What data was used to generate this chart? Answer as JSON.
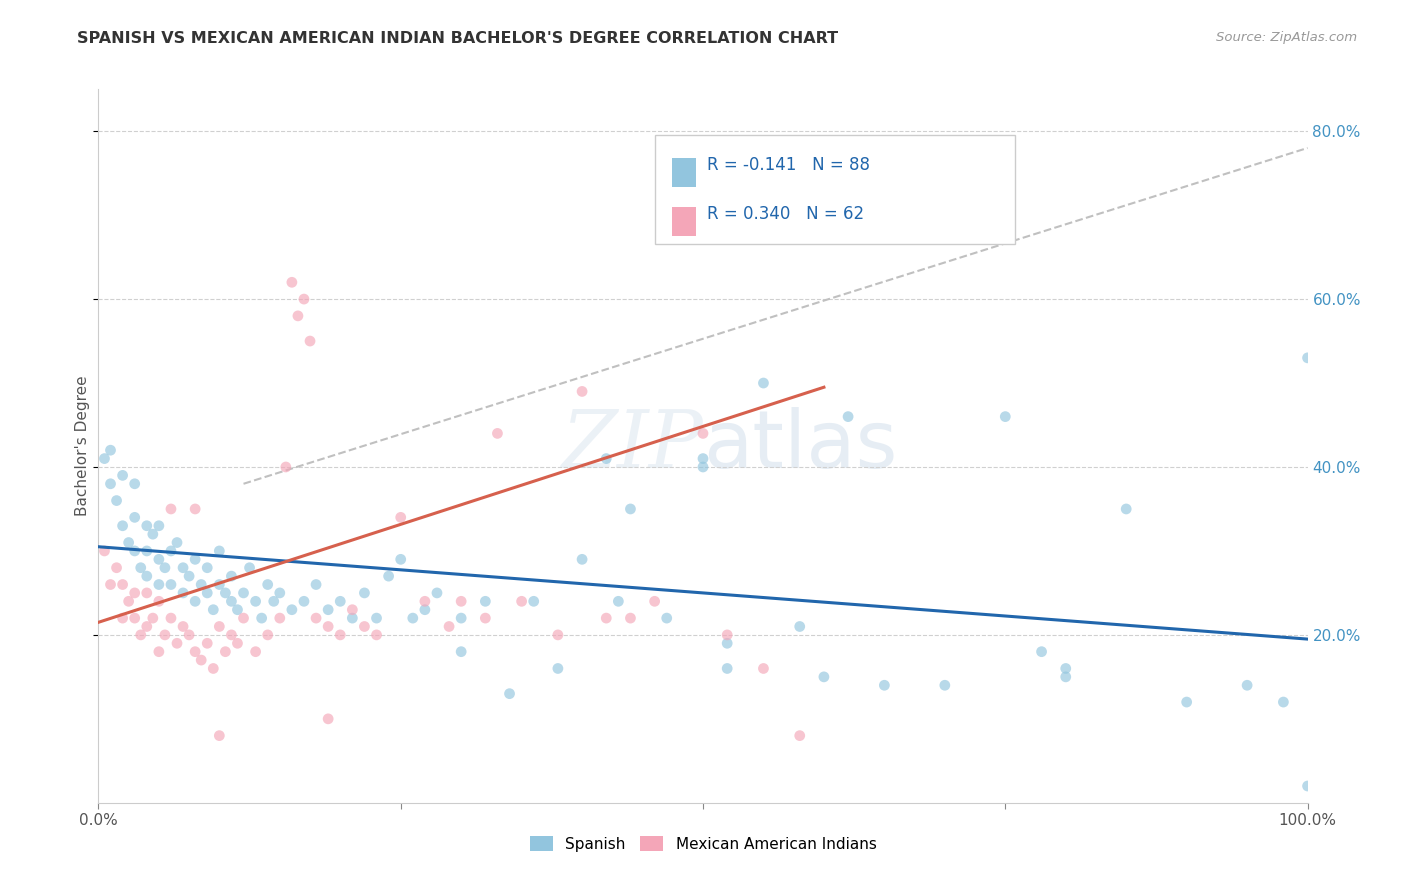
{
  "title": "SPANISH VS MEXICAN AMERICAN INDIAN BACHELOR'S DEGREE CORRELATION CHART",
  "source": "Source: ZipAtlas.com",
  "ylabel": "Bachelor's Degree",
  "watermark_zip": "ZIP",
  "watermark_atlas": "atlas",
  "legend_blue_r": "R = -0.141",
  "legend_blue_n": "N = 88",
  "legend_pink_r": "R = 0.340",
  "legend_pink_n": "N = 62",
  "legend_label_blue": "Spanish",
  "legend_label_pink": "Mexican American Indians",
  "blue_color": "#92c5de",
  "pink_color": "#f4a6b8",
  "trendline_blue_color": "#2166ac",
  "trendline_pink_color": "#d6604d",
  "trendline_dashed_color": "#c0c0c0",
  "ytick_color": "#4393c3",
  "text_color": "#333333",
  "grid_color": "#d0d0d0",
  "background_color": "#ffffff",
  "blue_scatter_x": [
    0.005,
    0.01,
    0.01,
    0.015,
    0.02,
    0.02,
    0.025,
    0.03,
    0.03,
    0.03,
    0.035,
    0.04,
    0.04,
    0.04,
    0.045,
    0.05,
    0.05,
    0.05,
    0.055,
    0.06,
    0.06,
    0.065,
    0.07,
    0.07,
    0.075,
    0.08,
    0.08,
    0.085,
    0.09,
    0.09,
    0.095,
    0.1,
    0.1,
    0.105,
    0.11,
    0.11,
    0.115,
    0.12,
    0.125,
    0.13,
    0.135,
    0.14,
    0.145,
    0.15,
    0.16,
    0.17,
    0.18,
    0.19,
    0.2,
    0.21,
    0.22,
    0.23,
    0.24,
    0.25,
    0.26,
    0.27,
    0.28,
    0.3,
    0.32,
    0.34,
    0.36,
    0.38,
    0.4,
    0.43,
    0.47,
    0.5,
    0.52,
    0.55,
    0.58,
    0.6,
    0.65,
    0.7,
    0.75,
    0.8,
    0.85,
    0.9,
    0.95,
    1.0,
    1.0,
    0.5,
    0.52,
    0.42,
    0.44,
    0.62,
    0.78,
    0.8,
    0.98,
    0.3
  ],
  "blue_scatter_y": [
    0.41,
    0.38,
    0.42,
    0.36,
    0.33,
    0.39,
    0.31,
    0.3,
    0.34,
    0.38,
    0.28,
    0.3,
    0.27,
    0.33,
    0.32,
    0.29,
    0.26,
    0.33,
    0.28,
    0.26,
    0.3,
    0.31,
    0.28,
    0.25,
    0.27,
    0.29,
    0.24,
    0.26,
    0.25,
    0.28,
    0.23,
    0.26,
    0.3,
    0.25,
    0.24,
    0.27,
    0.23,
    0.25,
    0.28,
    0.24,
    0.22,
    0.26,
    0.24,
    0.25,
    0.23,
    0.24,
    0.26,
    0.23,
    0.24,
    0.22,
    0.25,
    0.22,
    0.27,
    0.29,
    0.22,
    0.23,
    0.25,
    0.22,
    0.24,
    0.13,
    0.24,
    0.16,
    0.29,
    0.24,
    0.22,
    0.41,
    0.19,
    0.5,
    0.21,
    0.15,
    0.14,
    0.14,
    0.46,
    0.16,
    0.35,
    0.12,
    0.14,
    0.53,
    0.02,
    0.4,
    0.16,
    0.41,
    0.35,
    0.46,
    0.18,
    0.15,
    0.12,
    0.18
  ],
  "pink_scatter_x": [
    0.005,
    0.01,
    0.015,
    0.02,
    0.02,
    0.025,
    0.03,
    0.03,
    0.035,
    0.04,
    0.04,
    0.045,
    0.05,
    0.05,
    0.055,
    0.06,
    0.065,
    0.07,
    0.075,
    0.08,
    0.085,
    0.09,
    0.095,
    0.1,
    0.105,
    0.11,
    0.115,
    0.12,
    0.13,
    0.14,
    0.15,
    0.155,
    0.16,
    0.165,
    0.17,
    0.175,
    0.18,
    0.19,
    0.2,
    0.21,
    0.22,
    0.23,
    0.25,
    0.27,
    0.29,
    0.3,
    0.32,
    0.33,
    0.35,
    0.38,
    0.4,
    0.42,
    0.44,
    0.46,
    0.5,
    0.52,
    0.55,
    0.58,
    0.1,
    0.06,
    0.08,
    0.19
  ],
  "pink_scatter_y": [
    0.3,
    0.26,
    0.28,
    0.22,
    0.26,
    0.24,
    0.22,
    0.25,
    0.2,
    0.21,
    0.25,
    0.22,
    0.18,
    0.24,
    0.2,
    0.22,
    0.19,
    0.21,
    0.2,
    0.18,
    0.17,
    0.19,
    0.16,
    0.21,
    0.18,
    0.2,
    0.19,
    0.22,
    0.18,
    0.2,
    0.22,
    0.4,
    0.62,
    0.58,
    0.6,
    0.55,
    0.22,
    0.21,
    0.2,
    0.23,
    0.21,
    0.2,
    0.34,
    0.24,
    0.21,
    0.24,
    0.22,
    0.44,
    0.24,
    0.2,
    0.49,
    0.22,
    0.22,
    0.24,
    0.44,
    0.2,
    0.16,
    0.08,
    0.08,
    0.35,
    0.35,
    0.1
  ],
  "blue_trend_x": [
    0.0,
    1.0
  ],
  "blue_trend_y": [
    0.305,
    0.195
  ],
  "pink_trend_x": [
    0.0,
    0.6
  ],
  "pink_trend_y": [
    0.215,
    0.495
  ],
  "dashed_trend_x": [
    0.12,
    1.0
  ],
  "dashed_trend_y": [
    0.38,
    0.78
  ],
  "xlim": [
    0.0,
    1.0
  ],
  "ylim": [
    0.0,
    0.85
  ],
  "yticks": [
    0.2,
    0.4,
    0.6,
    0.8
  ],
  "ytick_labels": [
    "20.0%",
    "40.0%",
    "60.0%",
    "80.0%"
  ],
  "xticks": [
    0.0,
    0.25,
    0.5,
    0.75,
    1.0
  ],
  "xtick_labels": [
    "0.0%",
    "",
    "",
    "",
    "100.0%"
  ],
  "marker_size": 60,
  "alpha": 0.65
}
